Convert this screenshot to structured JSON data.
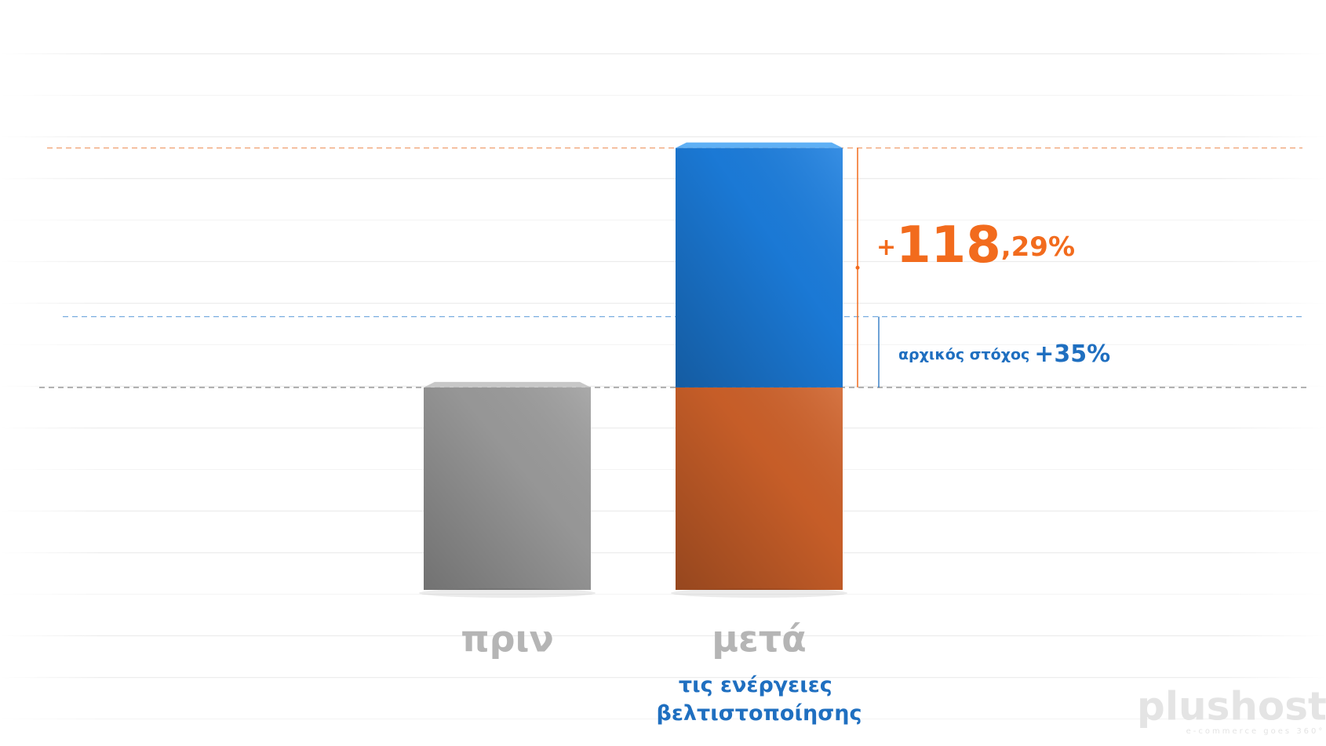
{
  "chart_data": {
    "type": "bar",
    "stacked": true,
    "categories": [
      "πριν",
      "μετά"
    ],
    "category_notes": [
      null,
      "τις ενέργειες βελτιστοποίησης"
    ],
    "series": [
      {
        "colors": [
          "#9e9e9e",
          "#d0622a"
        ],
        "values": [
          100,
          100
        ]
      },
      {
        "color": "#1c7fe0",
        "values": [
          null,
          118.29
        ],
        "value_labels": [
          null,
          "+118,29%"
        ]
      }
    ],
    "annotation": {
      "text": "αρχικός στόχος",
      "value": 35,
      "label": "+35%",
      "color": "#1f6fc0"
    },
    "ylim": [
      0,
      260
    ],
    "label_color": "#f26b1d",
    "logo": {
      "name": "plushost",
      "tagline": "e-commerce goes 360°"
    }
  }
}
